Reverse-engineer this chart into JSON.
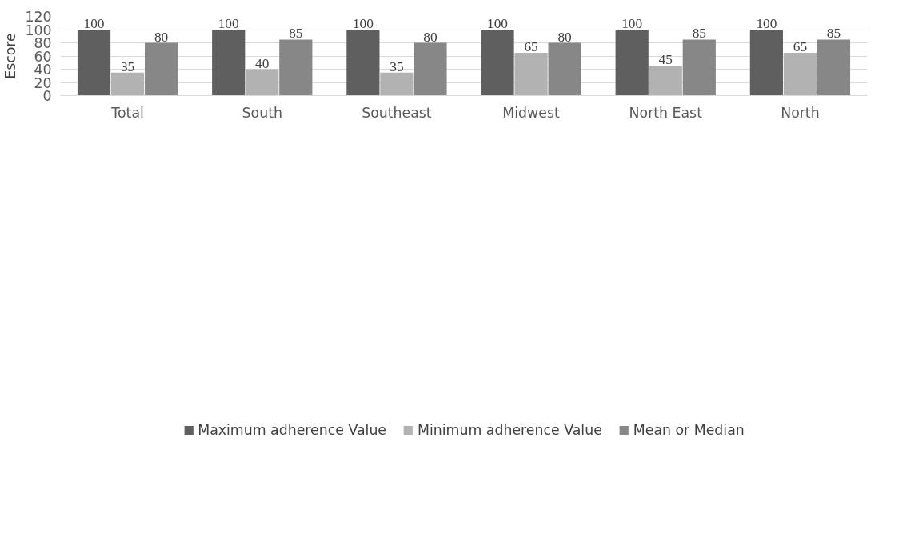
{
  "chart_data": {
    "type": "bar",
    "ylabel": "Escore",
    "categories": [
      "Total",
      "South",
      "Southeast",
      "Midwest",
      "North East",
      "North"
    ],
    "series": [
      {
        "name": "Maximum adherence Value",
        "color": "#5f5f5f",
        "values": [
          100,
          100,
          100,
          100,
          100,
          100
        ]
      },
      {
        "name": "Minimum adherence Value",
        "color": "#b2b2b2",
        "values": [
          35,
          40,
          35,
          65,
          45,
          65
        ]
      },
      {
        "name": "Mean or Median",
        "color": "#878787",
        "values": [
          80,
          85,
          80,
          80,
          85,
          85
        ]
      }
    ],
    "ylim": [
      0,
      120
    ],
    "yticks": [
      0,
      20,
      40,
      60,
      80,
      100,
      120
    ],
    "grid": "y",
    "legend": "bottom",
    "data_labels": true
  }
}
